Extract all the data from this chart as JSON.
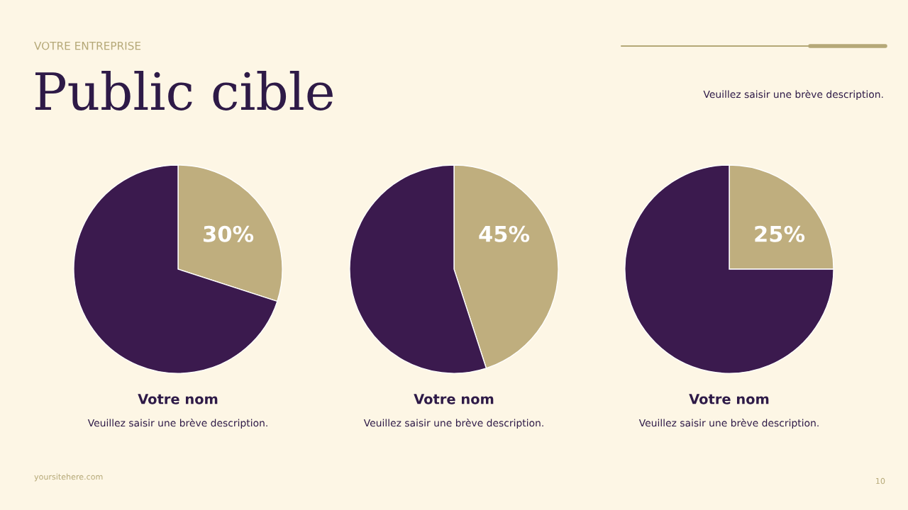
{
  "chart_data": [
    {
      "type": "other",
      "subtitle": "VOTRE ENTREPRISE",
      "title": "Public cible",
      "annotations": [
        "Veuillez saisir une brève description.",
        "yoursitehere.com",
        "10"
      ]
    },
    {
      "type": "pie",
      "title": "Votre nom",
      "subtitle": "Veuillez saisir une brève description.",
      "categories": [
        null,
        null
      ],
      "values": [
        30,
        70
      ],
      "value_labels": [
        "30%",
        null
      ],
      "colors": [
        "#bfae7e",
        "#3b1a4e"
      ]
    },
    {
      "type": "pie",
      "title": "Votre nom",
      "subtitle": "Veuillez saisir une brève description.",
      "categories": [
        null,
        null
      ],
      "values": [
        45,
        55
      ],
      "value_labels": [
        "45%",
        null
      ],
      "colors": [
        "#bfae7e",
        "#3b1a4e"
      ]
    },
    {
      "type": "pie",
      "title": "Votre nom",
      "subtitle": "Veuillez saisir une brève description.",
      "categories": [
        null,
        null
      ],
      "values": [
        25,
        75
      ],
      "value_labels": [
        "25%",
        null
      ],
      "colors": [
        "#bfae7e",
        "#3b1a4e"
      ]
    }
  ]
}
